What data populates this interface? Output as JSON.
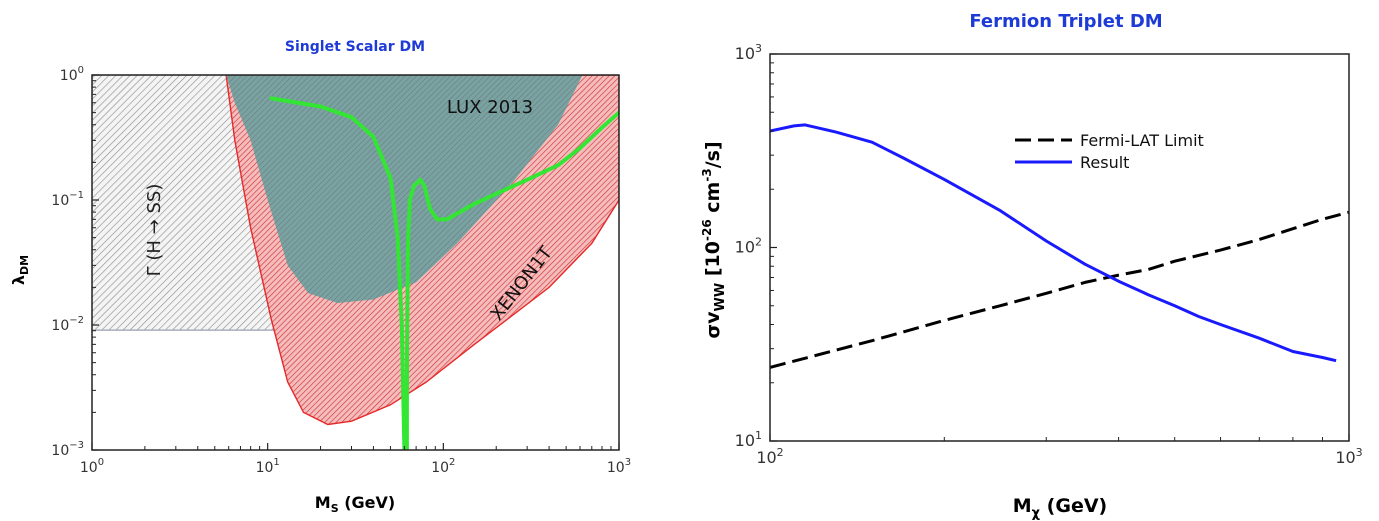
{
  "chart_data": [
    {
      "type": "line",
      "title": "Singlet Scalar DM",
      "xlabel_main": "M",
      "xlabel_sub": "S",
      "xlabel_rest": " (GeV)",
      "ylabel_main": "λ",
      "ylabel_sub": "DM",
      "xscale": "log",
      "yscale": "log",
      "xlim": [
        1,
        1000
      ],
      "ylim": [
        0.001,
        1
      ],
      "x_ticks": [
        {
          "value": 1,
          "mant": "10",
          "exp": "0"
        },
        {
          "value": 10,
          "mant": "10",
          "exp": "1"
        },
        {
          "value": 100,
          "mant": "10",
          "exp": "2"
        },
        {
          "value": 1000,
          "mant": "10",
          "exp": "3"
        }
      ],
      "y_ticks": [
        {
          "value": 0.001,
          "mant": "10",
          "exp": "−3"
        },
        {
          "value": 0.01,
          "mant": "10",
          "exp": "−2"
        },
        {
          "value": 0.1,
          "mant": "10",
          "exp": "−1"
        },
        {
          "value": 1,
          "mant": "10",
          "exp": "0"
        }
      ],
      "regions": [
        {
          "name": "Γ (H → SS)",
          "color": "#9e9e9e",
          "pattern": "gray-hatch",
          "boundary": [
            [
              1,
              1
            ],
            [
              62.5,
              1
            ],
            [
              62.5,
              0.0091
            ],
            [
              1,
              0.0091
            ]
          ]
        },
        {
          "name": "XENON1T",
          "color": "#e52a2a",
          "pattern": "red-hatch",
          "boundary": [
            [
              5.8,
              1
            ],
            [
              1000,
              1
            ],
            [
              1000,
              0.1
            ],
            [
              700,
              0.045
            ],
            [
              400,
              0.02
            ],
            [
              150,
              0.007
            ],
            [
              80,
              0.0035
            ],
            [
              50,
              0.0023
            ],
            [
              30,
              0.0017
            ],
            [
              22,
              0.0016
            ],
            [
              16,
              0.002
            ],
            [
              13,
              0.0035
            ],
            [
              10.5,
              0.011
            ],
            [
              8,
              0.06
            ],
            [
              6.5,
              0.3
            ],
            [
              5.8,
              1
            ]
          ]
        },
        {
          "name": "LUX 2013",
          "color": "#4a9a9a",
          "pattern": "teal",
          "boundary": [
            [
              5.8,
              1
            ],
            [
              620,
              1
            ],
            [
              450,
              0.4
            ],
            [
              250,
              0.14
            ],
            [
              120,
              0.045
            ],
            [
              70,
              0.022
            ],
            [
              40,
              0.016
            ],
            [
              25,
              0.015
            ],
            [
              17,
              0.018
            ],
            [
              13,
              0.03
            ],
            [
              10,
              0.1
            ],
            [
              8,
              0.3
            ],
            [
              6.5,
              0.6
            ],
            [
              5.8,
              1
            ]
          ]
        }
      ],
      "series": [
        {
          "name": "",
          "color": "#33e633",
          "points": [
            [
              10.5,
              0.65
            ],
            [
              20,
              0.56
            ],
            [
              30,
              0.46
            ],
            [
              40,
              0.32
            ],
            [
              50,
              0.15
            ],
            [
              55,
              0.05
            ],
            [
              58,
              0.01
            ],
            [
              60,
              0.001
            ]
          ]
        },
        {
          "name": "",
          "color": "#33e633",
          "points": [
            [
              62,
              0.001
            ],
            [
              62,
              0.003
            ],
            [
              62.3,
              0.01
            ],
            [
              63,
              0.05
            ],
            [
              64.5,
              0.1
            ],
            [
              68,
              0.13
            ],
            [
              74,
              0.145
            ],
            [
              78,
              0.13
            ],
            [
              84,
              0.085
            ],
            [
              92,
              0.07
            ],
            [
              105,
              0.07
            ],
            [
              120,
              0.078
            ],
            [
              150,
              0.093
            ],
            [
              200,
              0.112
            ],
            [
              300,
              0.145
            ],
            [
              450,
              0.19
            ],
            [
              600,
              0.26
            ],
            [
              800,
              0.38
            ],
            [
              1000,
              0.5
            ]
          ]
        }
      ]
    },
    {
      "type": "line",
      "title": "Fermion Triplet DM",
      "xlabel_main": "M",
      "xlabel_sub": "χ",
      "xlabel_rest": " (GeV)",
      "ylabel_a": "σv",
      "ylabel_sub": "WW",
      "ylabel_b": " [10",
      "ylabel_exp1": "-26",
      "ylabel_c": " cm",
      "ylabel_exp2": "-3",
      "ylabel_d": "/s]",
      "xscale": "log",
      "yscale": "log",
      "xlim": [
        100,
        1000
      ],
      "ylim": [
        10,
        1000
      ],
      "x_ticks": [
        {
          "value": 100,
          "mant": "10",
          "exp": "2"
        },
        {
          "value": 1000,
          "mant": "10",
          "exp": "3"
        }
      ],
      "y_ticks": [
        {
          "value": 10,
          "mant": "10",
          "exp": "1"
        },
        {
          "value": 100,
          "mant": "10",
          "exp": "2"
        },
        {
          "value": 1000,
          "mant": "10",
          "exp": "3"
        }
      ],
      "legend_position": "top-center",
      "series": [
        {
          "name": "Fermi-LAT Limit",
          "color": "#000000",
          "style": "dashed",
          "points": [
            [
              100,
              24
            ],
            [
              150,
              33
            ],
            [
              200,
              42
            ],
            [
              250,
              50
            ],
            [
              300,
              58
            ],
            [
              350,
              66
            ],
            [
              400,
              72
            ],
            [
              450,
              77
            ],
            [
              500,
              85
            ],
            [
              600,
              97
            ],
            [
              700,
              110
            ],
            [
              800,
              125
            ],
            [
              900,
              140
            ],
            [
              1000,
              152
            ]
          ]
        },
        {
          "name": "Result",
          "color": "#1a1aff",
          "points": [
            [
              100,
              400
            ],
            [
              110,
              425
            ],
            [
              115,
              430
            ],
            [
              130,
              395
            ],
            [
              150,
              350
            ],
            [
              170,
              290
            ],
            [
              200,
              225
            ],
            [
              250,
              155
            ],
            [
              300,
              108
            ],
            [
              350,
              82
            ],
            [
              400,
              67
            ],
            [
              450,
              57
            ],
            [
              500,
              50
            ],
            [
              550,
              44
            ],
            [
              600,
              40
            ],
            [
              700,
              34
            ],
            [
              800,
              29
            ],
            [
              900,
              27
            ],
            [
              950,
              26
            ]
          ]
        }
      ]
    }
  ]
}
